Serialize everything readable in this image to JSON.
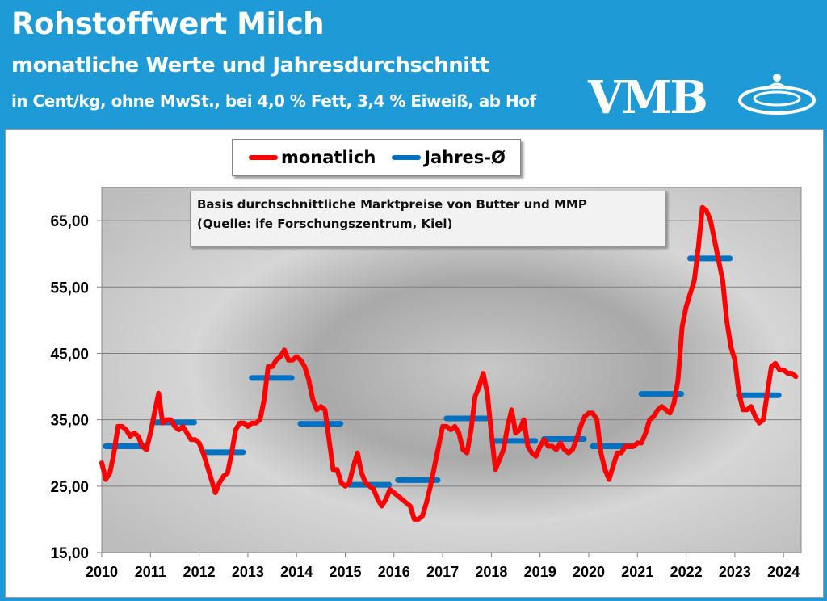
{
  "header": {
    "title": "Rohstoffwert Milch",
    "subtitle": "monatliche Werte und Jahresdurchschnitt",
    "unit_line": "in Cent/kg, ohne MwSt., bei 4,0 % Fett, 3,4 % Eiweiß, ab Hof",
    "logo_text": "VMB",
    "background_color": "#1e9ad6"
  },
  "chart_data": {
    "type": "line",
    "title": "",
    "note_line1": "Basis durchschnittliche Marktpreise von Butter und MMP",
    "note_line2": "(Quelle: ife Forschungszentrum, Kiel)",
    "ylim": [
      15,
      70
    ],
    "yticks": [
      "15,00",
      "25,00",
      "35,00",
      "45,00",
      "55,00",
      "65,00"
    ],
    "ytick_values": [
      15,
      25,
      35,
      45,
      55,
      65
    ],
    "xticks": [
      "2010",
      "2011",
      "2012",
      "2013",
      "2014",
      "2015",
      "2016",
      "2017",
      "2018",
      "2019",
      "2020",
      "2021",
      "2022",
      "2023",
      "2024"
    ],
    "grid": true,
    "legend_position": "top",
    "series": [
      {
        "name": "monatlich",
        "color": "#ff0000",
        "start": "2010-01",
        "frequency": "monthly",
        "values": [
          28.5,
          26,
          27,
          30,
          34,
          34,
          33.5,
          32.5,
          33,
          32.5,
          31,
          30.5,
          33,
          36,
          39,
          34.5,
          35,
          35,
          34,
          33.5,
          34,
          33,
          32,
          32,
          31.5,
          30,
          28,
          26,
          24,
          25.5,
          26.5,
          27,
          30,
          33.5,
          34.5,
          34.5,
          34,
          34.5,
          34.5,
          35,
          38,
          43,
          43,
          44,
          44.5,
          45.5,
          44,
          44,
          44.5,
          44,
          43,
          41,
          38,
          36.5,
          37,
          36.5,
          32,
          27.5,
          27.5,
          25.5,
          25,
          25.5,
          28,
          30,
          27,
          25.5,
          25,
          24.5,
          23,
          22,
          23,
          24.5,
          24,
          23.5,
          23,
          22.5,
          22,
          20,
          20,
          20.5,
          22.5,
          25,
          28,
          31,
          34,
          34,
          33.5,
          34,
          33,
          30.5,
          30,
          33.5,
          38.5,
          40,
          42,
          39,
          33,
          27.5,
          29,
          30.5,
          34,
          36.5,
          33,
          33.5,
          35,
          31,
          30,
          29.5,
          31,
          32,
          31,
          31,
          30.5,
          31.5,
          30.5,
          30,
          30.5,
          32,
          34,
          35.5,
          36,
          36,
          35,
          30,
          27.5,
          26,
          28,
          30,
          30,
          31,
          31,
          31,
          31.5,
          31.5,
          33,
          35,
          35.5,
          36.5,
          37,
          36.5,
          36,
          37.5,
          41,
          49,
          52,
          54,
          56,
          61,
          67,
          66.5,
          65,
          62,
          59,
          56,
          50,
          46,
          44,
          39,
          36.5,
          36.5,
          37,
          35.5,
          34.5,
          35,
          39,
          43,
          43.5,
          42.5,
          42.5,
          42,
          42,
          41.5
        ]
      },
      {
        "name": "Jahres-Ø",
        "color": "#0070c0",
        "years": [
          2010,
          2011,
          2012,
          2013,
          2014,
          2015,
          2016,
          2017,
          2018,
          2019,
          2020,
          2021,
          2022,
          2023
        ],
        "values": [
          31.0,
          34.6,
          30.1,
          41.3,
          34.4,
          25.2,
          25.9,
          35.2,
          31.8,
          32.1,
          31.0,
          38.9,
          59.3,
          38.7
        ]
      }
    ]
  }
}
